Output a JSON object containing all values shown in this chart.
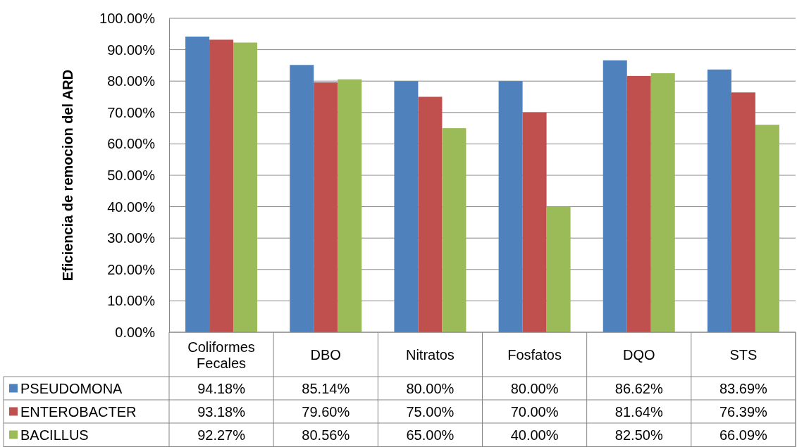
{
  "chart_data": {
    "type": "bar",
    "ylabel": "Eficiencia de remocion del ARD",
    "categories": [
      "Coliformes Fecales",
      "DBO",
      "Nitratos",
      "Fosfatos",
      "DQO",
      "STS"
    ],
    "series": [
      {
        "name": "PSEUDOMONA",
        "color": "#4f81bd",
        "values": [
          94.18,
          85.14,
          80.0,
          80.0,
          86.62,
          83.69
        ],
        "value_labels": [
          "94.18%",
          "85.14%",
          "80.00%",
          "80.00%",
          "86.62%",
          "83.69%"
        ]
      },
      {
        "name": "ENTEROBACTER",
        "color": "#c0504d",
        "values": [
          93.18,
          79.6,
          75.0,
          70.0,
          81.64,
          76.39
        ],
        "value_labels": [
          "93.18%",
          "79.60%",
          "75.00%",
          "70.00%",
          "81.64%",
          "76.39%"
        ]
      },
      {
        "name": "BACILLUS",
        "color": "#9bbb59",
        "values": [
          92.27,
          80.56,
          65.0,
          40.0,
          82.5,
          66.09
        ],
        "value_labels": [
          "92.27%",
          "80.56%",
          "65.00%",
          "40.00%",
          "82.50%",
          "66.09%"
        ]
      }
    ],
    "ylim": [
      0,
      100
    ],
    "yticks": [
      {
        "value": 0,
        "label": "0.00%"
      },
      {
        "value": 10,
        "label": "10.00%"
      },
      {
        "value": 20,
        "label": "20.00%"
      },
      {
        "value": 30,
        "label": "30.00%"
      },
      {
        "value": 40,
        "label": "40.00%"
      },
      {
        "value": 50,
        "label": "50.00%"
      },
      {
        "value": 60,
        "label": "60.00%"
      },
      {
        "value": 70,
        "label": "70.00%"
      },
      {
        "value": 80,
        "label": "80.00%"
      },
      {
        "value": 90,
        "label": "90.00%"
      },
      {
        "value": 100,
        "label": "100.00%"
      }
    ],
    "grid": "y",
    "legend": "bottom"
  }
}
